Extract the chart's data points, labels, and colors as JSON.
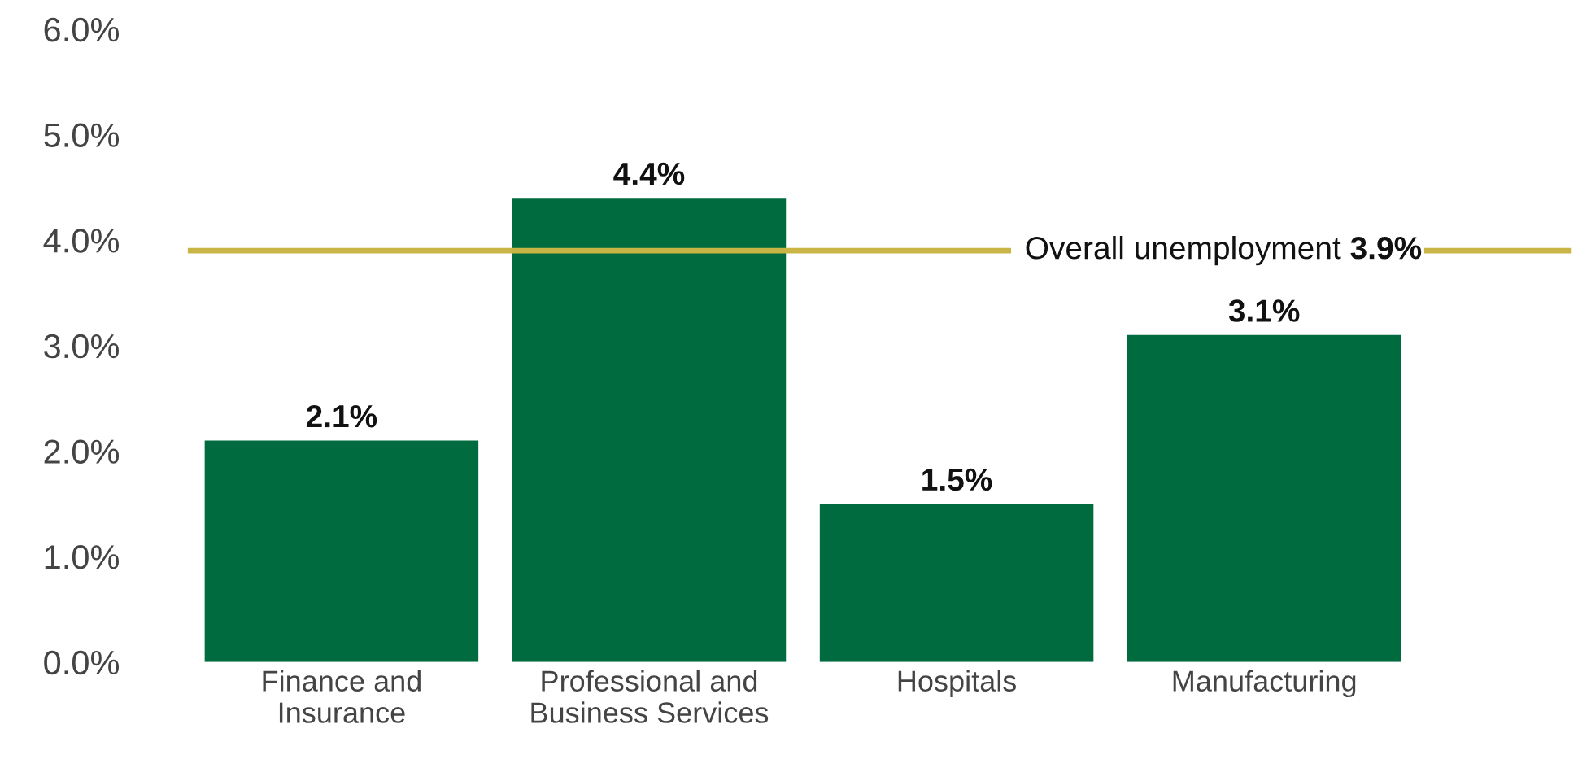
{
  "chart_data": {
    "type": "bar",
    "categories": [
      "Finance and\nInsurance",
      "Professional and\nBusiness Services",
      "Hospitals",
      "Manufacturing"
    ],
    "values": [
      2.1,
      4.4,
      1.5,
      3.1
    ],
    "value_labels": [
      "2.1%",
      "4.4%",
      "1.5%",
      "3.1%"
    ],
    "color": "#006b3f",
    "ylim": [
      0,
      6
    ],
    "yticks": [
      {
        "value": 0,
        "label": "0.0%"
      },
      {
        "value": 1,
        "label": "1.0%"
      },
      {
        "value": 2,
        "label": "2.0%"
      },
      {
        "value": 3,
        "label": "3.0%"
      },
      {
        "value": 4,
        "label": "4.0%"
      },
      {
        "value": 5,
        "label": "5.0%"
      },
      {
        "value": 6,
        "label": "6.0%"
      }
    ],
    "ref_lines": [
      {
        "axis": "y",
        "value": 3.9,
        "label": "Overall unemployment 3.9%",
        "color": "#c9b546"
      }
    ],
    "grid": false,
    "legend": false
  }
}
